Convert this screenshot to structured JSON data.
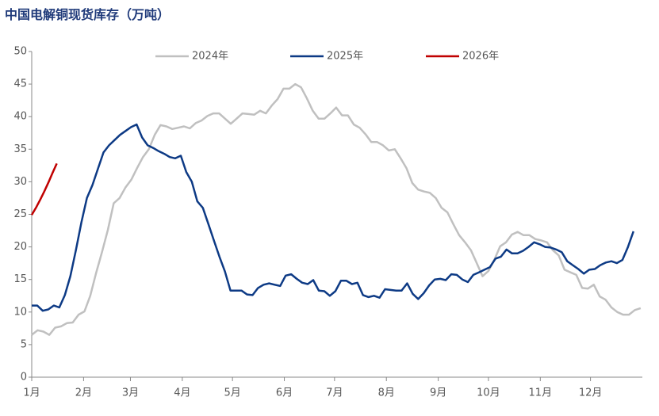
{
  "chart_data": {
    "type": "line",
    "title": "中国电解铜现货库存（万吨）",
    "legend": "top",
    "grid": false,
    "xlim": [
      0,
      365
    ],
    "xticks": [
      {
        "value": 0,
        "label": "1月"
      },
      {
        "value": 31,
        "label": "2月"
      },
      {
        "value": 59,
        "label": "3月"
      },
      {
        "value": 90,
        "label": "4月"
      },
      {
        "value": 120,
        "label": "5月"
      },
      {
        "value": 151,
        "label": "6月"
      },
      {
        "value": 181,
        "label": "7月"
      },
      {
        "value": 212,
        "label": "8月"
      },
      {
        "value": 243,
        "label": "9月"
      },
      {
        "value": 273,
        "label": "10月"
      },
      {
        "value": 304,
        "label": "11月"
      },
      {
        "value": 334,
        "label": "12月"
      }
    ],
    "ylim": [
      0,
      50
    ],
    "yticks": [
      0,
      5,
      10,
      15,
      20,
      25,
      30,
      35,
      40,
      45,
      50
    ],
    "series": [
      {
        "name": "2024年",
        "color": "#c0c0c0",
        "x": [
          0,
          3.5,
          7,
          10.5,
          14,
          17.5,
          21,
          24.5,
          28,
          31.5,
          35,
          38.5,
          42,
          45.5,
          49,
          52.5,
          56,
          59.5,
          63,
          66.5,
          70,
          73.5,
          77,
          80.5,
          84,
          87.5,
          91,
          94.5,
          98,
          101.5,
          105,
          108.5,
          112,
          115.5,
          119,
          122.5,
          126,
          129.5,
          133,
          136.5,
          140,
          143.5,
          147,
          150.5,
          154,
          157.5,
          161,
          164.5,
          168,
          171.5,
          175,
          178.5,
          182,
          185.5,
          189,
          192.5,
          196,
          199.5,
          203,
          206.5,
          210,
          213.5,
          217,
          220.5,
          224,
          227.5,
          231,
          234.5,
          238,
          241.5,
          245,
          248.5,
          252,
          255.5,
          259,
          262.5,
          266,
          269.5,
          273,
          276.5,
          280,
          283.5,
          287,
          290.5,
          294,
          297.5,
          301,
          304.5,
          308,
          311.5,
          315,
          318.5,
          322,
          325.5,
          329,
          332.5,
          336,
          339.5,
          343,
          346.5,
          350,
          353.5,
          357,
          360.5,
          364
        ],
        "values": [
          6.5,
          7.2,
          7.0,
          6.5,
          7.6,
          7.8,
          8.3,
          8.4,
          9.6,
          10.1,
          12.5,
          16,
          19.2,
          22.6,
          26.7,
          27.5,
          29.1,
          30.3,
          32.1,
          33.8,
          35,
          37.2,
          38.7,
          38.5,
          38.1,
          38.3,
          38.5,
          38.2,
          39,
          39.4,
          40.1,
          40.5,
          40.5,
          39.7,
          38.9,
          39.7,
          40.5,
          40.4,
          40.3,
          40.9,
          40.5,
          41.7,
          42.7,
          44.3,
          44.3,
          45,
          44.5,
          42.8,
          40.9,
          39.7,
          39.7,
          40.5,
          41.4,
          40.2,
          40.2,
          38.8,
          38.3,
          37.3,
          36.1,
          36.1,
          35.6,
          34.8,
          35,
          33.6,
          32.1,
          29.8,
          28.8,
          28.5,
          28.3,
          27.5,
          26,
          25.3,
          23.5,
          21.8,
          20.7,
          19.5,
          17.5,
          15.5,
          16.3,
          18,
          20.1,
          20.7,
          21.9,
          22.3,
          21.8,
          21.8,
          21.2,
          21,
          20.7,
          19.5,
          18.7,
          16.5,
          16.1,
          15.7,
          13.7,
          13.6,
          14.2,
          12.4,
          11.9,
          10.7,
          10,
          9.6,
          9.6,
          10.3,
          10.6
        ]
      },
      {
        "name": "2025年",
        "color": "#0d3a85",
        "x": [
          0,
          3.3,
          6.6,
          9.9,
          13.2,
          16.5,
          19.8,
          23.1,
          26.4,
          29.7,
          33,
          36.3,
          39.6,
          42.9,
          46.2,
          49.5,
          52.8,
          56.1,
          59.4,
          62.7,
          66,
          69.3,
          72.6,
          75.9,
          79.2,
          82.5,
          85.8,
          89.1,
          92.4,
          95.7,
          99,
          102.3,
          105.6,
          108.9,
          112.2,
          115.5,
          118.8,
          122.1,
          125.4,
          128.7,
          132,
          135.3,
          138.6,
          141.9,
          145.2,
          148.5,
          151.8,
          155.1,
          158.4,
          161.7,
          165,
          168.3,
          171.6,
          174.9,
          178.2,
          181.5,
          184.8,
          188.1,
          191.4,
          194.7,
          198,
          201.3,
          204.6,
          207.9,
          211.2,
          214.5,
          217.8,
          221.1,
          224.4,
          227.7,
          231,
          234.3,
          237.6,
          240.9,
          244.2,
          247.5,
          250.8,
          254.1,
          257.4,
          260.7,
          264,
          267.3,
          270.6,
          273.9,
          277.2,
          280.5,
          283.8,
          287.1,
          290.4,
          293.7,
          297,
          300.3,
          303.6,
          306.9,
          310.2,
          313.5,
          316.8,
          320.1,
          323.4,
          326.7,
          330,
          333.3,
          336.6,
          339.9,
          343.2,
          346.5,
          349.8,
          353.1,
          356.4,
          359.7
        ],
        "values": [
          11,
          11,
          10.2,
          10.4,
          11,
          10.7,
          12.6,
          15.5,
          19.5,
          23.8,
          27.5,
          29.5,
          32,
          34.5,
          35.6,
          36.4,
          37.2,
          37.8,
          38.4,
          38.8,
          36.8,
          35.6,
          35.2,
          34.7,
          34.3,
          33.8,
          33.6,
          34,
          31.5,
          30,
          27,
          26,
          23.5,
          21,
          18.5,
          16.2,
          13.3,
          13.3,
          13.3,
          12.7,
          12.6,
          13.7,
          14.2,
          14.4,
          14.2,
          14,
          15.6,
          15.8,
          15.1,
          14.5,
          14.3,
          14.9,
          13.3,
          13.2,
          12.5,
          13.2,
          14.8,
          14.8,
          14.3,
          14.5,
          12.6,
          12.3,
          12.5,
          12.2,
          13.5,
          13.4,
          13.3,
          13.3,
          14.4,
          12.8,
          12,
          12.9,
          14.1,
          15,
          15.1,
          14.9,
          15.8,
          15.7,
          15,
          14.6,
          15.7,
          16.1,
          16.5,
          16.9,
          18.2,
          18.5,
          19.6,
          19,
          19,
          19.4,
          20,
          20.7,
          20.4,
          20,
          19.9,
          19.6,
          19.2,
          17.8,
          17.2,
          16.6,
          15.9,
          16.5,
          16.6,
          17.2,
          17.6,
          17.8,
          17.5,
          18,
          20,
          22.4
        ]
      },
      {
        "name": "2026年",
        "color": "#c00000",
        "x": [
          0,
          2.5,
          5,
          7.5,
          10,
          12.5,
          15
        ],
        "values": [
          24.9,
          26,
          27.2,
          28.5,
          29.9,
          31.4,
          32.8
        ]
      }
    ]
  }
}
